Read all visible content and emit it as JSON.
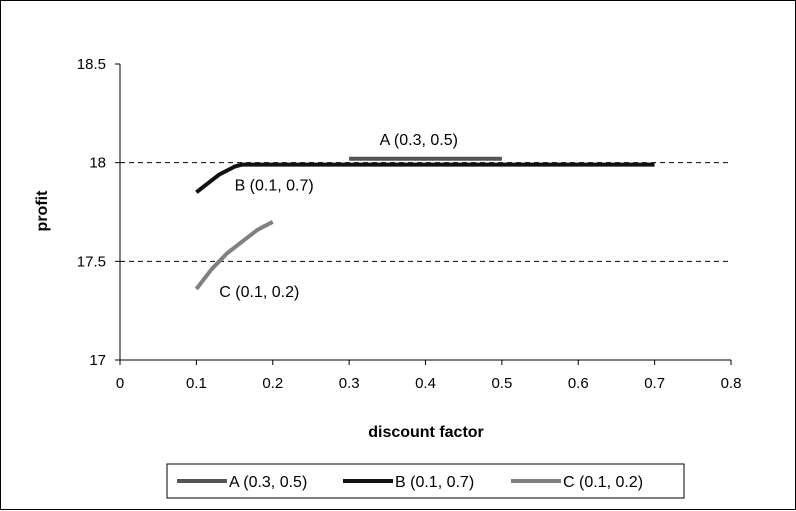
{
  "chart_data": {
    "type": "line",
    "title": "",
    "xlabel": "discount factor",
    "ylabel": "profit",
    "xlim": [
      0,
      0.8
    ],
    "ylim": [
      17,
      18.5
    ],
    "x_ticks": [
      "0",
      "0.1",
      "0.2",
      "0.3",
      "0.4",
      "0.5",
      "0.6",
      "0.7",
      "0.8"
    ],
    "y_ticks": [
      "17",
      "17.5",
      "18",
      "18.5"
    ],
    "grid": "horizontal dashed at 17.5 and 18",
    "legend_position": "bottom",
    "series": [
      {
        "name": "A (0.3, 0.5)",
        "color": "#555555",
        "x": [
          0.3,
          0.35,
          0.4,
          0.45,
          0.5
        ],
        "y": [
          18.02,
          18.02,
          18.02,
          18.02,
          18.02
        ]
      },
      {
        "name": "B (0.1, 0.7)",
        "color": "#111111",
        "x": [
          0.1,
          0.11,
          0.12,
          0.13,
          0.14,
          0.15,
          0.16,
          0.2,
          0.3,
          0.4,
          0.5,
          0.6,
          0.7
        ],
        "y": [
          17.85,
          17.88,
          17.91,
          17.94,
          17.96,
          17.98,
          17.99,
          17.99,
          17.99,
          17.99,
          17.99,
          17.99,
          17.99
        ]
      },
      {
        "name": "C (0.1, 0.2)",
        "color": "#808080",
        "x": [
          0.1,
          0.11,
          0.12,
          0.13,
          0.14,
          0.15,
          0.16,
          0.17,
          0.18,
          0.19,
          0.2
        ],
        "y": [
          17.36,
          17.41,
          17.46,
          17.5,
          17.54,
          17.57,
          17.6,
          17.63,
          17.66,
          17.68,
          17.7
        ]
      }
    ],
    "annotations": [
      {
        "text": "A (0.3, 0.5)",
        "x": 0.34,
        "y": 18.09
      },
      {
        "text": "B (0.1, 0.7)",
        "x": 0.15,
        "y": 17.86
      },
      {
        "text": "C (0.1, 0.2)",
        "x": 0.13,
        "y": 17.32
      }
    ]
  }
}
